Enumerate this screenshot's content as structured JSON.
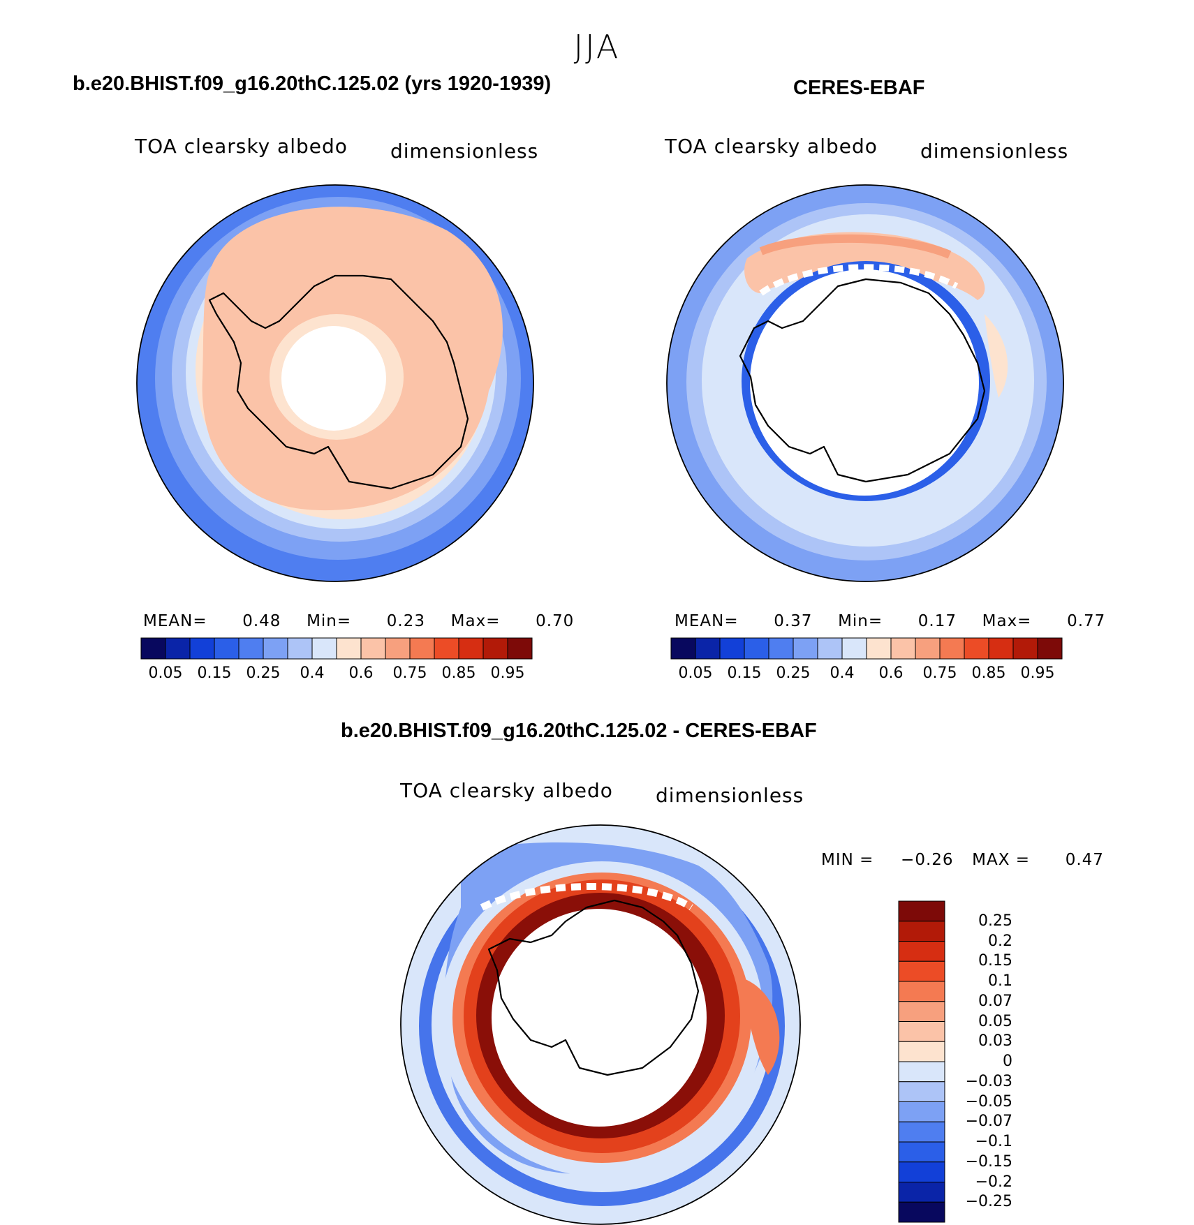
{
  "title": "JJA",
  "panels": [
    {
      "case": "b.e20.BHIST.f09_g16.20thC.125.02 (yrs 1920-1939)",
      "variable": "TOA clearsky albedo",
      "units": "dimensionless",
      "stats": {
        "mean_label": "MEAN=",
        "mean": "0.48",
        "min_label": "Min=",
        "min": "0.23",
        "max_label": "Max=",
        "max": "0.70"
      }
    },
    {
      "case": "CERES-EBAF",
      "variable": "TOA clearsky albedo",
      "units": "dimensionless",
      "stats": {
        "mean_label": "MEAN=",
        "mean": "0.37",
        "min_label": "Min=",
        "min": "0.17",
        "max_label": "Max=",
        "max": "0.77"
      }
    },
    {
      "case": "b.e20.BHIST.f09_g16.20thC.125.02 - CERES-EBAF",
      "variable": "TOA clearsky albedo",
      "units": "dimensionless",
      "stats": {
        "min_label": "MIN =",
        "min": "−0.26",
        "max_label": "MAX =",
        "max": "0.47"
      }
    }
  ],
  "colorbar_abs": {
    "colors": [
      "#08085e",
      "#0a24a8",
      "#1240d8",
      "#2b5fe8",
      "#4f7ef0",
      "#7da1f4",
      "#adc4f7",
      "#d9e6fa",
      "#fde3cf",
      "#fbc3a8",
      "#f7a07e",
      "#f47a52",
      "#ec4c26",
      "#d62e12",
      "#b21a08",
      "#7d0a08"
    ],
    "tick_labels": [
      "0.05",
      "0.15",
      "0.25",
      "0.4",
      "0.6",
      "0.75",
      "0.85",
      "0.95"
    ]
  },
  "colorbar_diff": {
    "colors": [
      "#7d0a08",
      "#b21a08",
      "#d62e12",
      "#ec4c26",
      "#f47a52",
      "#f7a07e",
      "#fbc3a8",
      "#fde3cf",
      "#d9e6fa",
      "#adc4f7",
      "#7da1f4",
      "#4f7ef0",
      "#2b5fe8",
      "#1240d8",
      "#0a24a8",
      "#08085e"
    ],
    "tick_labels": [
      "0.25",
      "0.2",
      "0.15",
      "0.1",
      "0.07",
      "0.05",
      "0.03",
      "0",
      "−0.03",
      "−0.05",
      "−0.07",
      "−0.1",
      "−0.15",
      "−0.2",
      "−0.25"
    ]
  },
  "map_colors": {
    "outer": "#4f7ef0",
    "mid": "#7da1f4",
    "light": "#adc4f7",
    "pale": "#d9e6fa",
    "peach": "#fbc3a8",
    "cream": "#fde3cf",
    "red_dark": "#8a0f08",
    "red": "#e3411c",
    "orange": "#f47a52",
    "blue": "#2b5fe8"
  }
}
